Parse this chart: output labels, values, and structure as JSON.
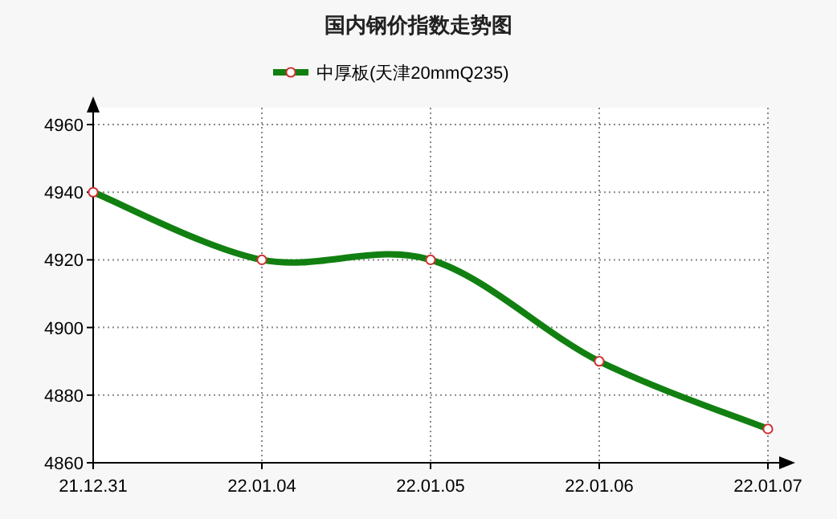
{
  "chart_data": {
    "type": "line",
    "title": "国内钢价指数走势图",
    "categories": [
      "21.12.31",
      "22.01.04",
      "22.01.05",
      "22.01.06",
      "22.01.07"
    ],
    "series": [
      {
        "name": "中厚板(天津20mmQ235)",
        "color": "#118011",
        "values": [
          4940,
          4920,
          4920,
          4890,
          4870
        ]
      }
    ],
    "ylim": [
      4860,
      4965
    ],
    "yticks": [
      4860,
      4880,
      4900,
      4920,
      4940,
      4960
    ],
    "grid": true,
    "legend": "top",
    "marker": "circle",
    "line_style": "solid"
  }
}
